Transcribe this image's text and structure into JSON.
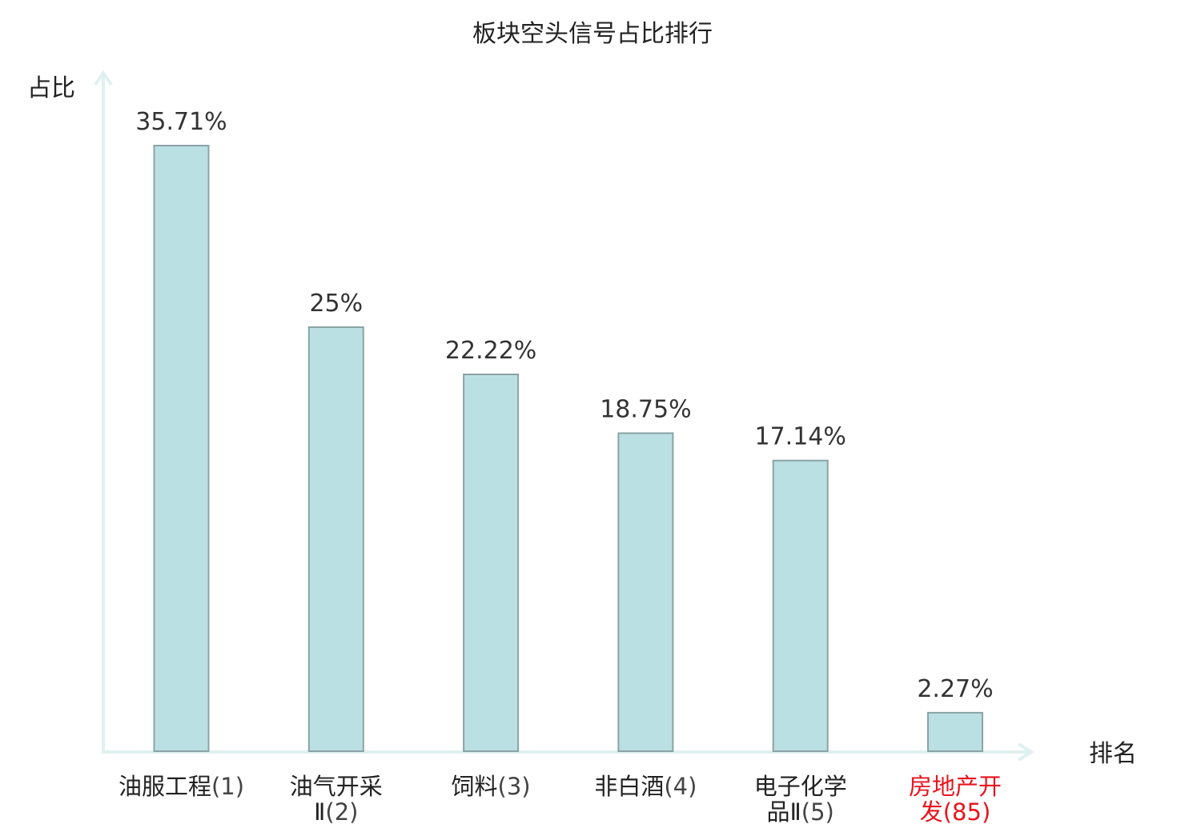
{
  "chart_data": {
    "type": "bar",
    "title": "板块空头信号占比排行",
    "ylabel": "占比",
    "xlabel": "排名",
    "ylim": [
      0,
      35.71
    ],
    "grid": false,
    "categories": [
      {
        "lines": [
          "油服工程"
        ],
        "rank": "(1)",
        "highlight": false
      },
      {
        "lines": [
          "油气开采",
          "Ⅱ"
        ],
        "rank": "(2)",
        "highlight": false
      },
      {
        "lines": [
          "饲料"
        ],
        "rank": "(3)",
        "highlight": false
      },
      {
        "lines": [
          "非白酒"
        ],
        "rank": "(4)",
        "highlight": false
      },
      {
        "lines": [
          "电子化学",
          "品Ⅱ"
        ],
        "rank": "(5)",
        "highlight": false
      },
      {
        "lines": [
          "房地产开",
          "发"
        ],
        "rank": "(85)",
        "highlight": true
      }
    ],
    "values": [
      35.71,
      25,
      22.22,
      18.75,
      17.14,
      2.27
    ],
    "value_labels": [
      "35.71%",
      "25%",
      "22.22%",
      "18.75%",
      "17.14%",
      "2.27%"
    ],
    "colors": {
      "bar_fill": "#bbe0e3",
      "bar_stroke": "#8aa3a6",
      "axis": "#dff1ef",
      "label_text": "#222222",
      "highlight_text": "#e8141e",
      "rank_text": "#444444"
    }
  }
}
